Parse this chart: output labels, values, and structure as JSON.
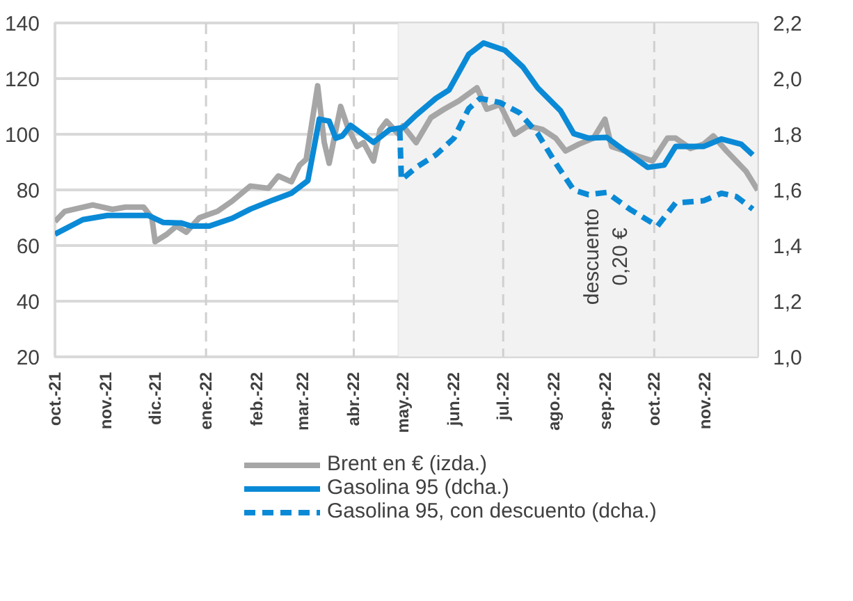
{
  "chart_data": {
    "type": "line",
    "xlim": [
      "2021-10-01",
      "2022-12-03"
    ],
    "xticks": [
      {
        "value": "2021-10-01",
        "label": "oct.-21"
      },
      {
        "value": "2021-11-01",
        "label": "nov.-21"
      },
      {
        "value": "2021-12-01",
        "label": "dic.-21"
      },
      {
        "value": "2022-01-01",
        "label": "ene.-22"
      },
      {
        "value": "2022-02-01",
        "label": "feb.-22"
      },
      {
        "value": "2022-03-01",
        "label": "mar.-22"
      },
      {
        "value": "2022-04-01",
        "label": "abr.-22"
      },
      {
        "value": "2022-05-01",
        "label": "may.-22"
      },
      {
        "value": "2022-06-01",
        "label": "jun.-22"
      },
      {
        "value": "2022-07-01",
        "label": "jul.-22"
      },
      {
        "value": "2022-08-01",
        "label": "ago.-22"
      },
      {
        "value": "2022-09-01",
        "label": "sep.-22"
      },
      {
        "value": "2022-10-01",
        "label": "oct.-22"
      },
      {
        "value": "2022-11-01",
        "label": "nov.-22"
      }
    ],
    "ylim": [
      20,
      140
    ],
    "yticks": [
      20,
      40,
      60,
      80,
      100,
      120,
      140
    ],
    "y2lim": [
      1.0,
      2.2
    ],
    "y2ticks": [
      {
        "value": 1.0,
        "label": "1,0"
      },
      {
        "value": 1.2,
        "label": "1,2"
      },
      {
        "value": 1.4,
        "label": "1,4"
      },
      {
        "value": 1.6,
        "label": "1,6"
      },
      {
        "value": 1.8,
        "label": "1,8"
      },
      {
        "value": 2.0,
        "label": "2,0"
      },
      {
        "value": 2.2,
        "label": "2,2"
      }
    ],
    "grid": "y",
    "legend": "bottom",
    "bands": [
      {
        "axis": "x",
        "from": "2022-04-28",
        "to": "2022-12-03",
        "color": "#f2f2f2"
      }
    ],
    "ref_lines": [
      {
        "axis": "x",
        "value": "2022-01-01",
        "color": "#d0d0d0",
        "line_style": "dashed"
      },
      {
        "axis": "x",
        "value": "2022-04-01",
        "color": "#d0d0d0",
        "line_style": "dashed"
      },
      {
        "axis": "x",
        "value": "2022-07-01",
        "color": "#d0d0d0",
        "line_style": "dashed"
      },
      {
        "axis": "x",
        "value": "2022-10-01",
        "color": "#d0d0d0",
        "line_style": "dashed"
      }
    ],
    "annotations": [
      "descuento\n0,20 €"
    ],
    "series": [
      {
        "name": "Brent en € (izda.)",
        "color": "#a6a6a6",
        "line_style": "solid",
        "x": [
          "2021-10-01",
          "2021-10-07",
          "2021-10-24",
          "2021-11-05",
          "2021-11-13",
          "2021-11-24",
          "2021-11-29",
          "2021-12-01",
          "2021-12-08",
          "2021-12-14",
          "2021-12-20",
          "2021-12-28",
          "2022-01-08",
          "2022-01-17",
          "2022-01-28",
          "2022-02-08",
          "2022-02-14",
          "2022-02-22",
          "2022-02-27",
          "2022-03-03",
          "2022-03-10",
          "2022-03-14",
          "2022-03-17",
          "2022-03-24",
          "2022-03-28",
          "2022-04-03",
          "2022-04-07",
          "2022-04-13",
          "2022-04-17",
          "2022-04-21",
          "2022-04-28",
          "2022-05-01",
          "2022-05-09",
          "2022-05-18",
          "2022-05-26",
          "2022-06-04",
          "2022-06-15",
          "2022-06-21",
          "2022-06-29",
          "2022-07-08",
          "2022-07-16",
          "2022-07-25",
          "2022-08-02",
          "2022-08-08",
          "2022-08-16",
          "2022-08-25",
          "2022-09-01",
          "2022-09-05",
          "2022-09-13",
          "2022-09-22",
          "2022-09-30",
          "2022-10-09",
          "2022-10-14",
          "2022-10-23",
          "2022-10-31",
          "2022-11-06",
          "2022-11-14",
          "2022-11-26",
          "2022-12-03"
        ],
        "values": [
          68.6,
          72.3,
          74.6,
          73,
          73.8,
          73.8,
          70,
          61.4,
          64,
          67,
          64.8,
          70,
          72.3,
          76,
          81.4,
          80.6,
          85,
          82.9,
          88.9,
          91,
          117.4,
          97.1,
          89.6,
          110,
          103,
          95.6,
          97,
          90.4,
          101.6,
          104.7,
          100.2,
          103,
          97,
          106,
          109,
          112,
          116.7,
          109,
          110.7,
          100,
          103,
          101.7,
          98.6,
          94,
          96.4,
          98.6,
          105.4,
          95.6,
          94,
          91.9,
          90.4,
          98.6,
          98.6,
          94.9,
          96.4,
          99.4,
          94,
          86.6,
          79.9
        ]
      },
      {
        "name": "Gasolina 95 (dcha.)",
        "color": "#0a8ad6",
        "line_style": "solid",
        "axis": "y2",
        "x": [
          "2021-10-01",
          "2021-10-18",
          "2021-11-02",
          "2021-11-27",
          "2021-12-06",
          "2021-12-17",
          "2021-12-23",
          "2022-01-03",
          "2022-01-17",
          "2022-01-28",
          "2022-02-11",
          "2022-02-22",
          "2022-03-04",
          "2022-03-11",
          "2022-03-17",
          "2022-03-21",
          "2022-03-25",
          "2022-03-30",
          "2022-04-06",
          "2022-04-13",
          "2022-04-23",
          "2022-05-01",
          "2022-05-09",
          "2022-05-21",
          "2022-05-29",
          "2022-06-10",
          "2022-06-19",
          "2022-07-02",
          "2022-07-13",
          "2022-07-22",
          "2022-08-05",
          "2022-08-13",
          "2022-08-22",
          "2022-09-02",
          "2022-09-13",
          "2022-09-27",
          "2022-10-07",
          "2022-10-14",
          "2022-10-31",
          "2022-11-11",
          "2022-11-23",
          "2022-11-30"
        ],
        "values": [
          1.441,
          1.493,
          1.508,
          1.508,
          1.483,
          1.481,
          1.47,
          1.47,
          1.498,
          1.531,
          1.564,
          1.588,
          1.633,
          1.854,
          1.847,
          1.786,
          1.794,
          1.832,
          1.802,
          1.771,
          1.817,
          1.824,
          1.869,
          1.929,
          1.959,
          2.087,
          2.128,
          2.102,
          2.042,
          1.967,
          1.884,
          1.802,
          1.786,
          1.789,
          1.741,
          1.681,
          1.689,
          1.756,
          1.756,
          1.783,
          1.764,
          1.726
        ]
      },
      {
        "name": "Gasolina 95, con descuento (dcha.)",
        "color": "#0a8ad6",
        "line_style": "dashed",
        "axis": "y2",
        "x": [
          "2022-04-29",
          "2022-04-30",
          "2022-05-09",
          "2022-05-21",
          "2022-06-01",
          "2022-06-10",
          "2022-06-17",
          "2022-06-29",
          "2022-07-11",
          "2022-07-22",
          "2022-08-02",
          "2022-08-13",
          "2022-08-22",
          "2022-09-02",
          "2022-09-16",
          "2022-10-03",
          "2022-10-14",
          "2022-10-31",
          "2022-11-11",
          "2022-11-20",
          "2022-11-30"
        ],
        "values": [
          1.817,
          1.636,
          1.681,
          1.726,
          1.786,
          1.892,
          1.929,
          1.914,
          1.877,
          1.802,
          1.696,
          1.599,
          1.583,
          1.591,
          1.531,
          1.47,
          1.553,
          1.561,
          1.588,
          1.576,
          1.531
        ]
      }
    ]
  }
}
